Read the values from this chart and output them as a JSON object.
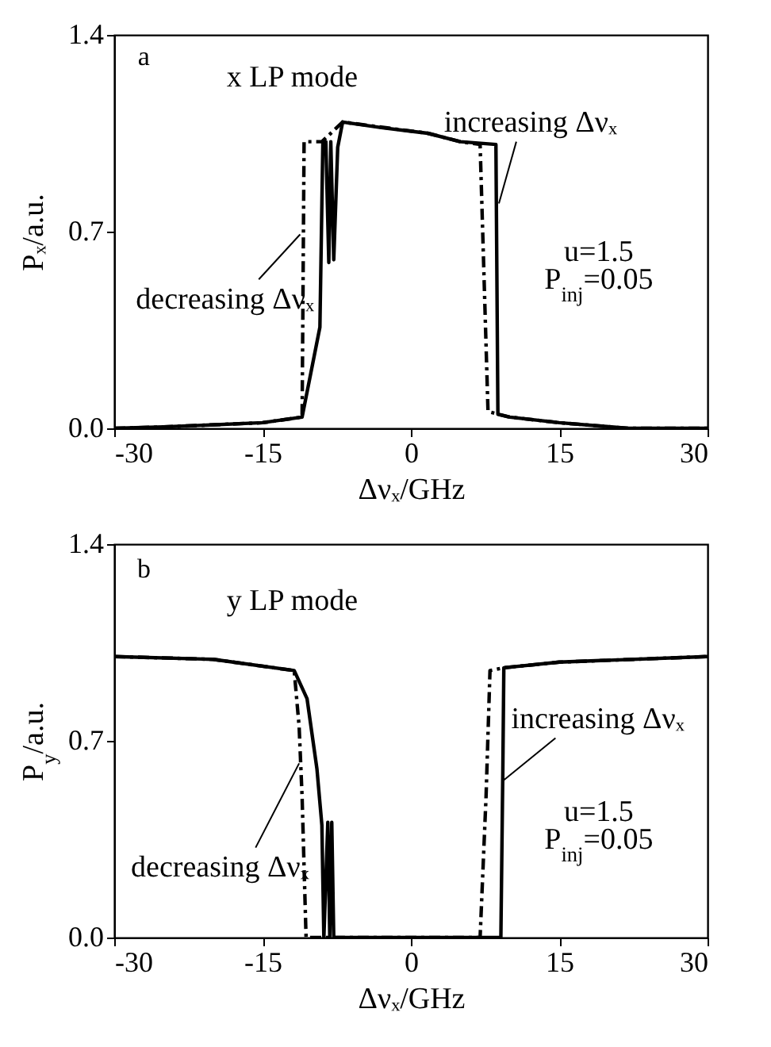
{
  "chart_data": [
    {
      "type": "line",
      "xlabel": "Δνₓ/GHz",
      "ylabel": "Pₓ/a.u.",
      "xlim": [
        -30,
        30
      ],
      "xticks": [
        -30,
        -15,
        0,
        15,
        30
      ],
      "ylim": [
        0,
        1.4
      ],
      "yticks": [
        {
          "value": 0,
          "label": "0.0"
        },
        {
          "value": 0.7,
          "label": "0.7"
        },
        {
          "value": 1.4,
          "label": "1.4"
        }
      ],
      "grid": false,
      "legend": false,
      "annotations": [
        "a",
        "x LP mode",
        "u=1.5",
        "P$_{inj}$=0.05",
        {
          "text": "increasing Δνₓ",
          "x": 8.9,
          "y": 0.8
        },
        {
          "text": "decreasing Δνₓ",
          "x": -11.2,
          "y": 0.69
        }
      ],
      "series": [
        {
          "color": "#000000",
          "line_style": "solid",
          "x": [
            -30,
            -25,
            -15,
            -11,
            -9.2,
            -8.9,
            -8.6,
            -8.3,
            -8.1,
            -7.8,
            -7.4,
            -6.9,
            -3,
            1.7,
            5,
            8.6,
            8.8,
            10,
            15,
            22,
            30
          ],
          "values": [
            0,
            0.005,
            0.02,
            0.04,
            0.36,
            1.02,
            1.02,
            0.59,
            1.02,
            0.6,
            1.0,
            1.09,
            1.07,
            1.05,
            1.02,
            1.01,
            0.05,
            0.04,
            0.02,
            0,
            0
          ]
        },
        {
          "color": "#000000",
          "line_style": "dashed",
          "x": [
            -30,
            -25,
            -15,
            -11,
            -10.8,
            -9,
            -6.9,
            1.7,
            5,
            7,
            7.8,
            10,
            15,
            22,
            30
          ],
          "values": [
            0,
            0.005,
            0.02,
            0.04,
            1.02,
            1.02,
            1.09,
            1.05,
            1.02,
            1.01,
            0.06,
            0.04,
            0.02,
            0,
            0
          ]
        }
      ]
    },
    {
      "type": "line",
      "xlabel": "Δνₓ/GHz",
      "ylabel": "P$_{y}$/a.u.",
      "xlim": [
        -30,
        30
      ],
      "xticks": [
        -30,
        -15,
        0,
        15,
        30
      ],
      "ylim": [
        0,
        1.4
      ],
      "yticks": [
        {
          "value": 0,
          "label": "0.0"
        },
        {
          "value": 0.7,
          "label": "0.7"
        },
        {
          "value": 1.4,
          "label": "1.4"
        }
      ],
      "grid": false,
      "legend": false,
      "annotations": [
        "b",
        "y LP mode",
        "u=1.5",
        "P$_{inj}$=0.05",
        {
          "text": "increasing Δνₓ",
          "x": 9.4,
          "y": 0.56
        },
        {
          "text": "decreasing Δνₓ",
          "x": -11.3,
          "y": 0.62
        }
      ],
      "series": [
        {
          "color": "#000000",
          "line_style": "solid",
          "x": [
            -30,
            -20,
            -11.8,
            -10.5,
            -9.5,
            -9,
            -8.8,
            -8.4,
            -8.2,
            -8,
            -7.8,
            9.1,
            9.3,
            9.4,
            15,
            30
          ],
          "values": [
            1,
            0.99,
            0.95,
            0.85,
            0.6,
            0.4,
            0,
            0.41,
            0,
            0.41,
            0,
            0,
            0.6,
            0.96,
            0.98,
            1
          ]
        },
        {
          "color": "#000000",
          "line_style": "dashed",
          "x": [
            -30,
            -20,
            -11.8,
            -11.3,
            -11,
            -10.6,
            7,
            7.6,
            8,
            9.4,
            15,
            30
          ],
          "values": [
            1,
            0.99,
            0.95,
            0.75,
            0.5,
            0,
            0,
            0.5,
            0.95,
            0.96,
            0.98,
            1
          ]
        }
      ]
    }
  ]
}
